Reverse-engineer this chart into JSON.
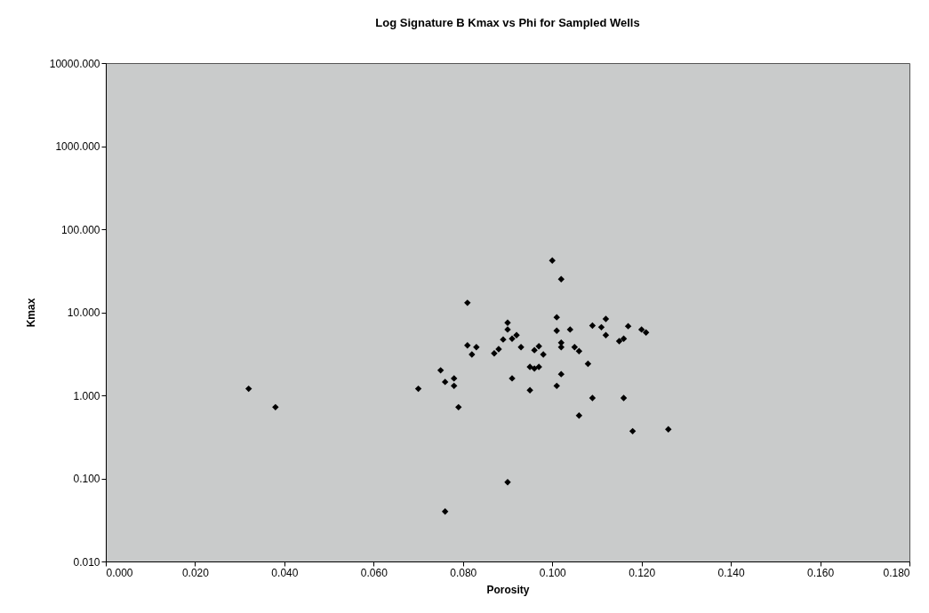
{
  "chart_data": {
    "type": "scatter",
    "title": "Log Signature B Kmax vs Phi for Sampled Wells",
    "xlabel": "Porosity",
    "ylabel": "Kmax",
    "log": "y",
    "marker": "diamond",
    "grid": false,
    "legend": false,
    "xlim": [
      0,
      0.18
    ],
    "xticks": [
      {
        "value": 0,
        "label": "0.000"
      },
      {
        "value": 0.02,
        "label": "0.020"
      },
      {
        "value": 0.04,
        "label": "0.040"
      },
      {
        "value": 0.06,
        "label": "0.060"
      },
      {
        "value": 0.08,
        "label": "0.080"
      },
      {
        "value": 0.1,
        "label": "0.100"
      },
      {
        "value": 0.12,
        "label": "0.120"
      },
      {
        "value": 0.14,
        "label": "0.140"
      },
      {
        "value": 0.16,
        "label": "0.160"
      },
      {
        "value": 0.18,
        "label": "0.180"
      }
    ],
    "ylim": [
      0.01,
      10000
    ],
    "yticks": [
      {
        "value": 0.01,
        "label": "0.010"
      },
      {
        "value": 0.1,
        "label": "0.100"
      },
      {
        "value": 1,
        "label": "1.000"
      },
      {
        "value": 10,
        "label": "10.000"
      },
      {
        "value": 100,
        "label": "100.000"
      },
      {
        "value": 1000,
        "label": "1000.000"
      },
      {
        "value": 10000,
        "label": "10000.000"
      }
    ],
    "x": [
      0.032,
      0.038,
      0.07,
      0.075,
      0.076,
      0.076,
      0.078,
      0.078,
      0.079,
      0.081,
      0.081,
      0.082,
      0.083,
      0.087,
      0.088,
      0.089,
      0.09,
      0.09,
      0.09,
      0.091,
      0.091,
      0.092,
      0.093,
      0.095,
      0.095,
      0.096,
      0.096,
      0.097,
      0.097,
      0.098,
      0.1,
      0.101,
      0.101,
      0.101,
      0.102,
      0.102,
      0.102,
      0.102,
      0.104,
      0.105,
      0.106,
      0.106,
      0.108,
      0.109,
      0.109,
      0.111,
      0.112,
      0.112,
      0.115,
      0.116,
      0.116,
      0.117,
      0.118,
      0.12,
      0.121,
      0.126
    ],
    "series": [
      {
        "color": "#000000",
        "values": [
          1.2,
          0.72,
          1.2,
          2.0,
          1.45,
          0.04,
          1.6,
          1.3,
          0.72,
          13,
          4.0,
          3.1,
          3.8,
          3.2,
          3.6,
          4.7,
          7.5,
          6.2,
          0.09,
          1.6,
          4.8,
          5.3,
          3.8,
          2.2,
          1.15,
          2.1,
          3.5,
          2.2,
          3.9,
          3.1,
          42,
          8.7,
          6.0,
          1.3,
          25,
          4.3,
          3.8,
          1.8,
          6.2,
          3.8,
          3.4,
          0.57,
          2.4,
          6.9,
          0.93,
          6.6,
          8.3,
          5.3,
          4.5,
          4.8,
          0.93,
          6.8,
          0.37,
          6.2,
          5.7,
          0.39
        ]
      }
    ]
  }
}
